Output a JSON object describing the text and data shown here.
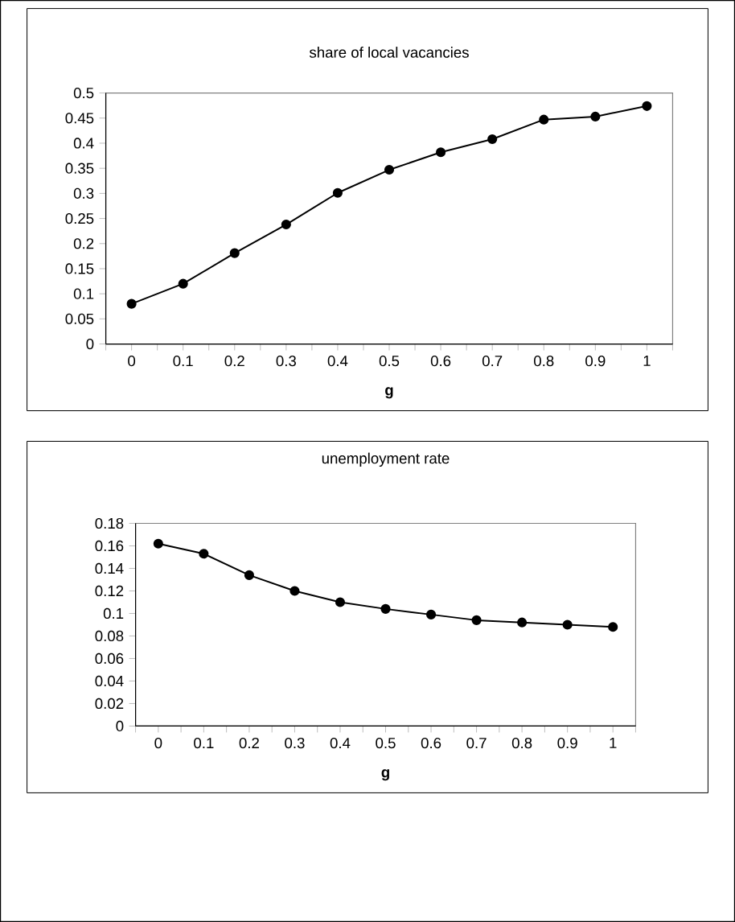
{
  "chart_data": [
    {
      "type": "line",
      "title": "share of local vacancies",
      "xlabel": "g",
      "categories": [
        "0",
        "0.1",
        "0.2",
        "0.3",
        "0.4",
        "0.5",
        "0.6",
        "0.7",
        "0.8",
        "0.9",
        "1"
      ],
      "values": [
        0.08,
        0.12,
        0.181,
        0.238,
        0.301,
        0.347,
        0.382,
        0.408,
        0.447,
        0.453,
        0.474
      ],
      "color": "#000000",
      "marker": "circle",
      "line_style": "solid",
      "ylim": [
        0,
        0.5
      ],
      "yticks": [
        0,
        0.05,
        0.1,
        0.15,
        0.2,
        0.25,
        0.3,
        0.35,
        0.4,
        0.45,
        0.5
      ],
      "grid": false
    },
    {
      "type": "line",
      "title": "unemployment rate",
      "xlabel": "g",
      "categories": [
        "0",
        "0.1",
        "0.2",
        "0.3",
        "0.4",
        "0.5",
        "0.6",
        "0.7",
        "0.8",
        "0.9",
        "1"
      ],
      "values": [
        0.162,
        0.153,
        0.134,
        0.12,
        0.11,
        0.104,
        0.099,
        0.094,
        0.092,
        0.09,
        0.088
      ],
      "color": "#000000",
      "marker": "circle",
      "line_style": "solid",
      "ylim": [
        0,
        0.18
      ],
      "yticks": [
        0,
        0.02,
        0.04,
        0.06,
        0.08,
        0.1,
        0.12,
        0.14,
        0.16,
        0.18
      ],
      "grid": false
    }
  ]
}
